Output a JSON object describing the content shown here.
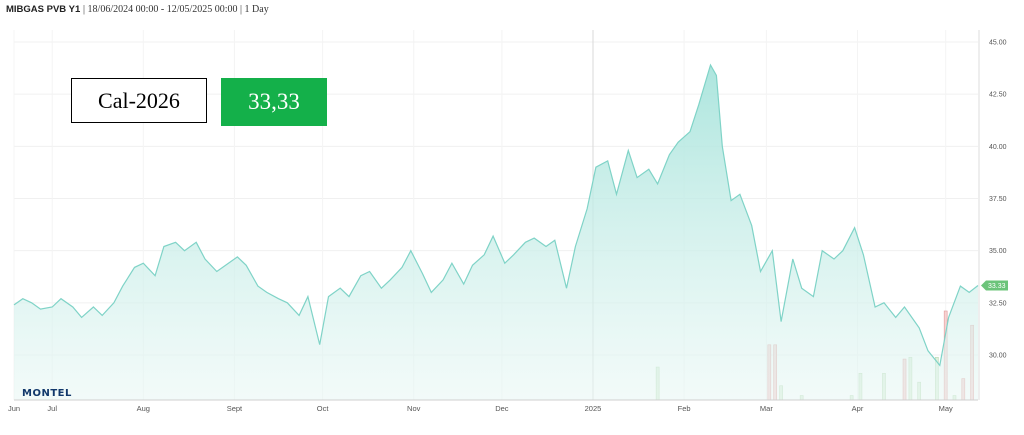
{
  "header": {
    "symbol": "MIBGAS PVB Y1",
    "range": "| 18/06/2024 00:00 - 12/05/2025 00:00 | 1 Day"
  },
  "cal_label": "Cal-2026",
  "price_label": "33,33",
  "logo_text": "MONTEL",
  "colors": {
    "line": "#7fd3c7",
    "fill_top": "#a8e4dc",
    "price_box": "#14b04a",
    "last_badge": "#6cc47a"
  },
  "chart_data": {
    "type": "area",
    "title": "",
    "xlabel": "",
    "ylabel": "",
    "ylim": [
      28,
      46
    ],
    "y_ticks": [
      "30.00",
      "32.50",
      "35.00",
      "37.50",
      "40.00",
      "42.50",
      "45.00"
    ],
    "x_ticks": [
      {
        "label": "Jun",
        "date": "2024-06-18"
      },
      {
        "label": "Jul",
        "date": "2024-07-01"
      },
      {
        "label": "Aug",
        "date": "2024-08-01"
      },
      {
        "label": "Sept",
        "date": "2024-09-01"
      },
      {
        "label": "Oct",
        "date": "2024-10-01"
      },
      {
        "label": "Nov",
        "date": "2024-11-01"
      },
      {
        "label": "Dec",
        "date": "2024-12-01"
      },
      {
        "label": "2025",
        "date": "2025-01-01"
      },
      {
        "label": "Feb",
        "date": "2025-02-01"
      },
      {
        "label": "Mar",
        "date": "2025-03-01"
      },
      {
        "label": "Apr",
        "date": "2025-04-01"
      },
      {
        "label": "May",
        "date": "2025-05-01"
      }
    ],
    "x_range": [
      "2024-06-18",
      "2025-05-12"
    ],
    "last_value_label": "33.33",
    "series": [
      {
        "values": [
          [
            "2024-06-18",
            32.4
          ],
          [
            "2024-06-21",
            32.7
          ],
          [
            "2024-06-24",
            32.5
          ],
          [
            "2024-06-27",
            32.2
          ],
          [
            "2024-07-01",
            32.3
          ],
          [
            "2024-07-04",
            32.7
          ],
          [
            "2024-07-08",
            32.3
          ],
          [
            "2024-07-11",
            31.8
          ],
          [
            "2024-07-15",
            32.3
          ],
          [
            "2024-07-18",
            31.9
          ],
          [
            "2024-07-22",
            32.5
          ],
          [
            "2024-07-25",
            33.3
          ],
          [
            "2024-07-29",
            34.2
          ],
          [
            "2024-08-01",
            34.4
          ],
          [
            "2024-08-05",
            33.8
          ],
          [
            "2024-08-08",
            35.2
          ],
          [
            "2024-08-12",
            35.4
          ],
          [
            "2024-08-15",
            35.0
          ],
          [
            "2024-08-19",
            35.4
          ],
          [
            "2024-08-22",
            34.6
          ],
          [
            "2024-08-26",
            34.0
          ],
          [
            "2024-08-29",
            34.3
          ],
          [
            "2024-09-02",
            34.7
          ],
          [
            "2024-09-05",
            34.3
          ],
          [
            "2024-09-09",
            33.3
          ],
          [
            "2024-09-12",
            33.0
          ],
          [
            "2024-09-16",
            32.7
          ],
          [
            "2024-09-19",
            32.5
          ],
          [
            "2024-09-23",
            31.9
          ],
          [
            "2024-09-26",
            32.8
          ],
          [
            "2024-09-30",
            30.5
          ],
          [
            "2024-10-03",
            32.8
          ],
          [
            "2024-10-07",
            33.2
          ],
          [
            "2024-10-10",
            32.8
          ],
          [
            "2024-10-14",
            33.8
          ],
          [
            "2024-10-17",
            34.0
          ],
          [
            "2024-10-21",
            33.2
          ],
          [
            "2024-10-24",
            33.6
          ],
          [
            "2024-10-28",
            34.2
          ],
          [
            "2024-10-31",
            35.0
          ],
          [
            "2024-11-04",
            33.9
          ],
          [
            "2024-11-07",
            33.0
          ],
          [
            "2024-11-11",
            33.6
          ],
          [
            "2024-11-14",
            34.4
          ],
          [
            "2024-11-18",
            33.4
          ],
          [
            "2024-11-21",
            34.3
          ],
          [
            "2024-11-25",
            34.8
          ],
          [
            "2024-11-28",
            35.7
          ],
          [
            "2024-12-02",
            34.4
          ],
          [
            "2024-12-05",
            34.8
          ],
          [
            "2024-12-09",
            35.4
          ],
          [
            "2024-12-12",
            35.6
          ],
          [
            "2024-12-16",
            35.2
          ],
          [
            "2024-12-19",
            35.5
          ],
          [
            "2024-12-23",
            33.2
          ],
          [
            "2024-12-26",
            35.2
          ],
          [
            "2024-12-30",
            37.0
          ],
          [
            "2025-01-02",
            39.0
          ],
          [
            "2025-01-06",
            39.3
          ],
          [
            "2025-01-09",
            37.7
          ],
          [
            "2025-01-13",
            39.8
          ],
          [
            "2025-01-16",
            38.5
          ],
          [
            "2025-01-20",
            38.9
          ],
          [
            "2025-01-23",
            38.2
          ],
          [
            "2025-01-27",
            39.6
          ],
          [
            "2025-01-30",
            40.2
          ],
          [
            "2025-02-03",
            40.7
          ],
          [
            "2025-02-06",
            42.0
          ],
          [
            "2025-02-10",
            43.9
          ],
          [
            "2025-02-12",
            43.4
          ],
          [
            "2025-02-14",
            40.0
          ],
          [
            "2025-02-17",
            37.4
          ],
          [
            "2025-02-20",
            37.7
          ],
          [
            "2025-02-24",
            36.2
          ],
          [
            "2025-02-27",
            34.0
          ],
          [
            "2025-03-03",
            35.0
          ],
          [
            "2025-03-06",
            31.6
          ],
          [
            "2025-03-10",
            34.6
          ],
          [
            "2025-03-13",
            33.2
          ],
          [
            "2025-03-17",
            32.8
          ],
          [
            "2025-03-20",
            35.0
          ],
          [
            "2025-03-24",
            34.6
          ],
          [
            "2025-03-27",
            35.0
          ],
          [
            "2025-03-31",
            36.1
          ],
          [
            "2025-04-03",
            34.8
          ],
          [
            "2025-04-07",
            32.3
          ],
          [
            "2025-04-10",
            32.5
          ],
          [
            "2025-04-14",
            31.8
          ],
          [
            "2025-04-17",
            32.3
          ],
          [
            "2025-04-22",
            31.3
          ],
          [
            "2025-04-25",
            30.2
          ],
          [
            "2025-04-29",
            29.5
          ],
          [
            "2025-05-02",
            31.8
          ],
          [
            "2025-05-06",
            33.3
          ],
          [
            "2025-05-09",
            33.0
          ],
          [
            "2025-05-12",
            33.33
          ]
        ]
      }
    ],
    "volume_bars": [
      {
        "date": "2025-01-23",
        "value": 0.37,
        "color": "green"
      },
      {
        "date": "2025-03-02",
        "value": 0.62,
        "color": "red"
      },
      {
        "date": "2025-03-04",
        "value": 0.62,
        "color": "red"
      },
      {
        "date": "2025-03-06",
        "value": 0.16,
        "color": "green"
      },
      {
        "date": "2025-03-13",
        "value": 0.05,
        "color": "green"
      },
      {
        "date": "2025-03-30",
        "value": 0.05,
        "color": "green"
      },
      {
        "date": "2025-04-02",
        "value": 0.3,
        "color": "green"
      },
      {
        "date": "2025-04-10",
        "value": 0.3,
        "color": "green"
      },
      {
        "date": "2025-04-17",
        "value": 0.46,
        "color": "red"
      },
      {
        "date": "2025-04-19",
        "value": 0.48,
        "color": "green"
      },
      {
        "date": "2025-04-22",
        "value": 0.2,
        "color": "green"
      },
      {
        "date": "2025-04-28",
        "value": 0.48,
        "color": "green"
      },
      {
        "date": "2025-05-01",
        "value": 1.0,
        "color": "red"
      },
      {
        "date": "2025-05-04",
        "value": 0.05,
        "color": "green"
      },
      {
        "date": "2025-05-07",
        "value": 0.24,
        "color": "red"
      },
      {
        "date": "2025-05-10",
        "value": 0.84,
        "color": "red"
      }
    ]
  }
}
